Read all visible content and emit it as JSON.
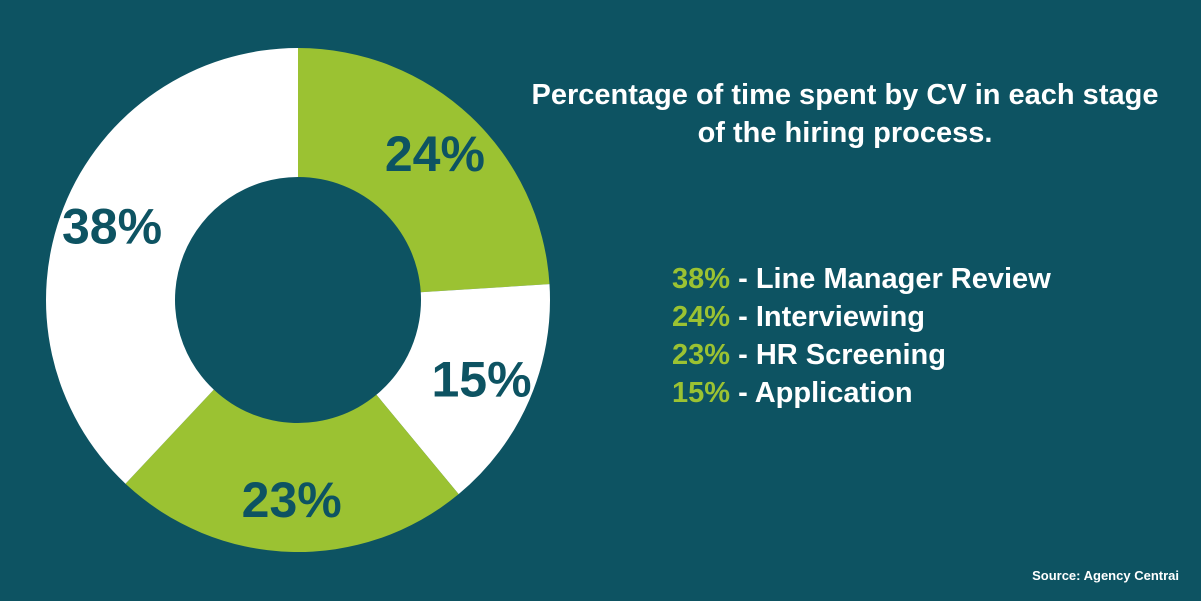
{
  "colors": {
    "background": "#0d5362",
    "green": "#9bc232",
    "white": "#ffffff"
  },
  "chart_data": {
    "type": "pie",
    "title": "Percentage of time spent by CV in each stage of the hiring process.",
    "slices": [
      {
        "name": "Interviewing",
        "value": 24,
        "label": "24%",
        "color": "#9bc232"
      },
      {
        "name": "Application",
        "value": 15,
        "label": "15%",
        "color": "#ffffff"
      },
      {
        "name": "HR Screening",
        "value": 23,
        "label": "23%",
        "color": "#9bc232"
      },
      {
        "name": "Line Manager Review",
        "value": 38,
        "label": "38%",
        "color": "#ffffff"
      }
    ],
    "legend": [
      {
        "pct": "38%",
        "text": " - Line Manager Review"
      },
      {
        "pct": "24%",
        "text": " - Interviewing"
      },
      {
        "pct": "23%",
        "text": " - HR Screening"
      },
      {
        "pct": "15%",
        "text": " - Application"
      }
    ],
    "source": "Source: Agency Centrai"
  }
}
